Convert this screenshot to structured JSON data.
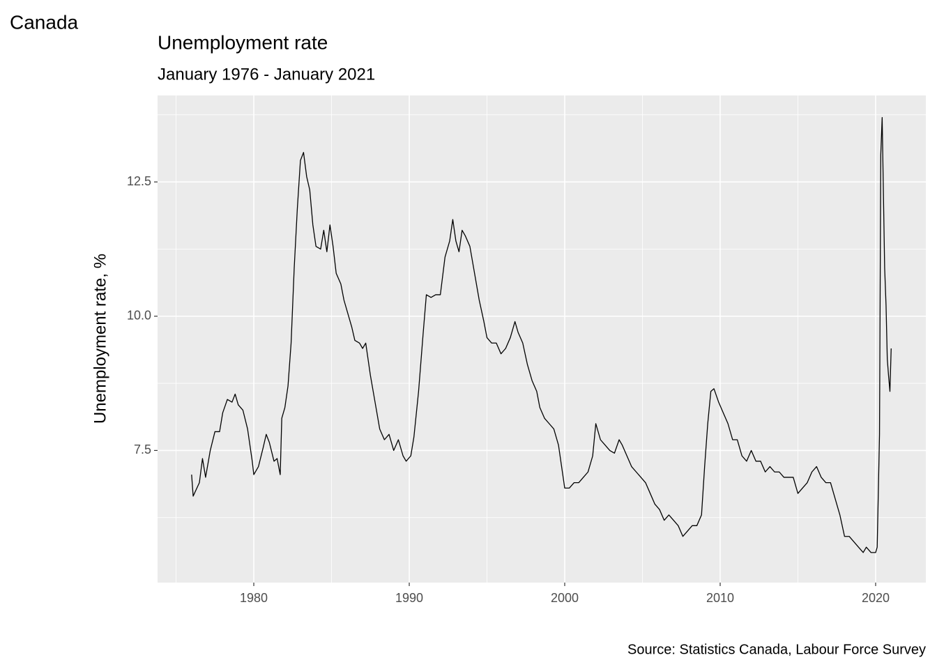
{
  "chart_data": {
    "type": "line",
    "header": "Canada",
    "title": "Unemployment rate",
    "subtitle": "January 1976 - January 2021",
    "y_label": "Unemployment rate, %",
    "caption": "Source: Statistics Canada, Labour Force Survey",
    "xlim": [
      1973.81,
      2023.23
    ],
    "xticks": [
      1980,
      1990,
      2000,
      2010,
      2020
    ],
    "x_minor_grid": [
      1975,
      1985,
      1995,
      2005,
      2015
    ],
    "ylim": [
      5.04,
      14.11
    ],
    "yticks": [
      {
        "value": 7.5,
        "label": "7.5"
      },
      {
        "value": 10,
        "label": "10.0"
      },
      {
        "value": 12.5,
        "label": "12.5"
      }
    ],
    "y_minor_grid": [
      6.25,
      8.75,
      11.25,
      13.75
    ],
    "grid": true,
    "color": "#000000",
    "x": [
      1976.0,
      1976.1,
      1976.5,
      1976.7,
      1976.9,
      1977.2,
      1977.5,
      1977.8,
      1978.0,
      1978.3,
      1978.6,
      1978.8,
      1979.0,
      1979.3,
      1979.6,
      1979.9,
      1980.0,
      1980.3,
      1980.6,
      1980.8,
      1981.0,
      1981.3,
      1981.5,
      1981.7,
      1981.8,
      1982.0,
      1982.2,
      1982.4,
      1982.6,
      1982.8,
      1983.0,
      1983.2,
      1983.4,
      1983.6,
      1983.8,
      1984.0,
      1984.3,
      1984.5,
      1984.7,
      1984.9,
      1985.1,
      1985.3,
      1985.6,
      1985.8,
      1986.0,
      1986.3,
      1986.5,
      1986.8,
      1987.0,
      1987.2,
      1987.5,
      1987.8,
      1988.1,
      1988.4,
      1988.7,
      1989.0,
      1989.3,
      1989.6,
      1989.8,
      1990.1,
      1990.3,
      1990.6,
      1990.9,
      1991.1,
      1991.4,
      1991.7,
      1992.0,
      1992.3,
      1992.6,
      1992.8,
      1993.0,
      1993.2,
      1993.4,
      1993.6,
      1993.9,
      1994.2,
      1994.5,
      1994.8,
      1995.0,
      1995.3,
      1995.6,
      1995.9,
      1996.2,
      1996.5,
      1996.8,
      1997.0,
      1997.3,
      1997.6,
      1997.9,
      1998.2,
      1998.4,
      1998.7,
      1999.0,
      1999.3,
      1999.6,
      1999.9,
      2000.0,
      2000.3,
      2000.6,
      2000.9,
      2001.2,
      2001.5,
      2001.8,
      2002.0,
      2002.3,
      2002.6,
      2002.9,
      2003.2,
      2003.5,
      2003.7,
      2004.0,
      2004.3,
      2004.6,
      2004.9,
      2005.2,
      2005.5,
      2005.8,
      2006.1,
      2006.4,
      2006.7,
      2007.0,
      2007.3,
      2007.6,
      2007.9,
      2008.2,
      2008.5,
      2008.8,
      2009.0,
      2009.2,
      2009.4,
      2009.6,
      2009.9,
      2010.2,
      2010.5,
      2010.8,
      2011.1,
      2011.4,
      2011.7,
      2012.0,
      2012.3,
      2012.6,
      2012.9,
      2013.2,
      2013.5,
      2013.8,
      2014.1,
      2014.4,
      2014.7,
      2015.0,
      2015.3,
      2015.6,
      2015.9,
      2016.2,
      2016.5,
      2016.8,
      2017.1,
      2017.4,
      2017.7,
      2018.0,
      2018.3,
      2018.6,
      2018.9,
      2019.2,
      2019.4,
      2019.7,
      2020.0,
      2020.1,
      2020.25,
      2020.33,
      2020.42,
      2020.5,
      2020.58,
      2020.67,
      2020.75,
      2020.83,
      2020.92,
      2021.0
    ],
    "values": [
      7.05,
      6.65,
      6.9,
      7.35,
      7.0,
      7.5,
      7.85,
      7.85,
      8.2,
      8.45,
      8.4,
      8.55,
      8.35,
      8.25,
      7.9,
      7.3,
      7.05,
      7.2,
      7.55,
      7.8,
      7.65,
      7.3,
      7.35,
      7.05,
      8.1,
      8.3,
      8.7,
      9.5,
      10.9,
      12.0,
      12.9,
      13.05,
      12.6,
      12.35,
      11.7,
      11.3,
      11.25,
      11.6,
      11.2,
      11.7,
      11.3,
      10.8,
      10.6,
      10.3,
      10.1,
      9.8,
      9.55,
      9.5,
      9.4,
      9.5,
      8.9,
      8.4,
      7.9,
      7.7,
      7.8,
      7.5,
      7.7,
      7.4,
      7.3,
      7.4,
      7.75,
      8.6,
      9.7,
      10.4,
      10.35,
      10.4,
      10.4,
      11.1,
      11.4,
      11.8,
      11.4,
      11.2,
      11.6,
      11.5,
      11.3,
      10.8,
      10.3,
      9.9,
      9.6,
      9.5,
      9.5,
      9.3,
      9.4,
      9.6,
      9.9,
      9.7,
      9.5,
      9.1,
      8.8,
      8.6,
      8.3,
      8.1,
      8.0,
      7.9,
      7.6,
      7.0,
      6.8,
      6.8,
      6.9,
      6.9,
      7.0,
      7.1,
      7.4,
      8.0,
      7.7,
      7.6,
      7.5,
      7.45,
      7.7,
      7.6,
      7.4,
      7.2,
      7.1,
      7.0,
      6.9,
      6.7,
      6.5,
      6.4,
      6.2,
      6.3,
      6.2,
      6.1,
      5.9,
      6.0,
      6.1,
      6.1,
      6.3,
      7.2,
      8.0,
      8.6,
      8.65,
      8.4,
      8.2,
      8.0,
      7.7,
      7.7,
      7.4,
      7.3,
      7.5,
      7.3,
      7.3,
      7.1,
      7.2,
      7.1,
      7.1,
      7.0,
      7.0,
      7.0,
      6.7,
      6.8,
      6.9,
      7.1,
      7.2,
      7.0,
      6.9,
      6.9,
      6.6,
      6.3,
      5.9,
      5.9,
      5.8,
      5.7,
      5.6,
      5.7,
      5.6,
      5.6,
      5.7,
      7.8,
      13.0,
      13.7,
      12.3,
      10.9,
      10.2,
      9.2,
      8.9,
      8.6,
      9.4
    ]
  }
}
